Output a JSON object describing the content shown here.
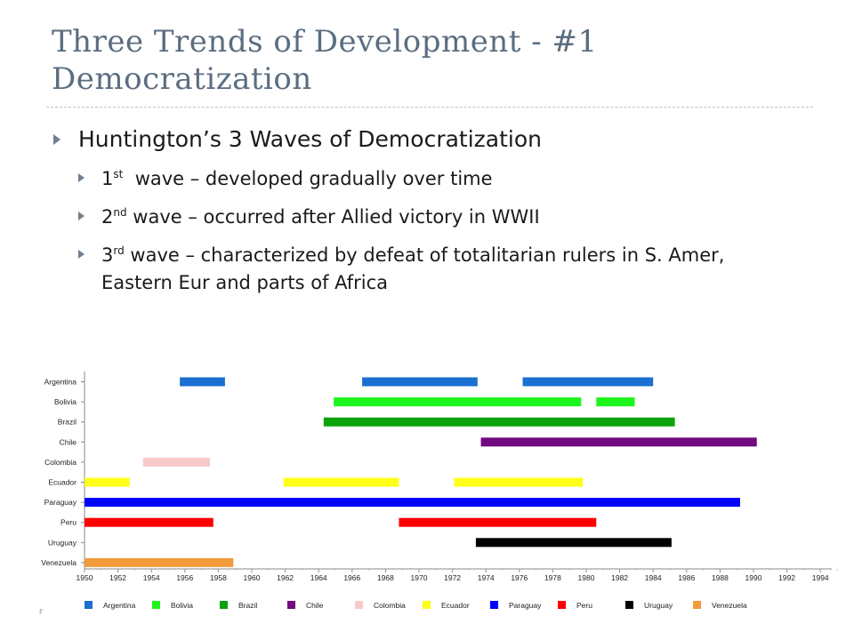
{
  "slide": {
    "title_line1": "Three Trends of Development - #1",
    "title_line2": "Democratization",
    "bullet_main": "Huntington’s 3 Waves of Democratization",
    "sub_bullets": [
      {
        "num": "1",
        "sup": "st",
        "text": "  wave – developed gradually over time"
      },
      {
        "num": "2",
        "sup": "nd",
        "text": " wave – occurred after Allied victory in WWII"
      },
      {
        "num": "3",
        "sup": "rd",
        "text": " wave – characterized by defeat of totalitarian rulers in S. Amer, Eastern Eur and parts of Africa"
      }
    ],
    "footnote": "F"
  },
  "chart_data": {
    "type": "timeline",
    "title": "",
    "xlim": [
      1950,
      1995
    ],
    "x_ticks": [
      1950,
      1952,
      1954,
      1956,
      1958,
      1960,
      1962,
      1964,
      1966,
      1968,
      1970,
      1972,
      1974,
      1976,
      1978,
      1980,
      1982,
      1984,
      1986,
      1988,
      1990,
      1992,
      1994
    ],
    "categories": [
      "Argentina",
      "Bolivia",
      "Brazil",
      "Chile",
      "Colombia",
      "Ecuador",
      "Paraguay",
      "Peru",
      "Uruguay",
      "Venezuela"
    ],
    "series": [
      {
        "name": "Argentina",
        "color": "#1a6fd1",
        "periods": [
          [
            1955.7,
            1958.4
          ],
          [
            1966.6,
            1973.5
          ],
          [
            1976.2,
            1984.0
          ]
        ]
      },
      {
        "name": "Bolivia",
        "color": "#1ef51e",
        "periods": [
          [
            1964.9,
            1979.7
          ],
          [
            1980.6,
            1982.9
          ]
        ]
      },
      {
        "name": "Brazil",
        "color": "#0ba30b",
        "periods": [
          [
            1964.3,
            1985.3
          ]
        ]
      },
      {
        "name": "Chile",
        "color": "#720a80",
        "periods": [
          [
            1973.7,
            1990.2
          ]
        ]
      },
      {
        "name": "Colombia",
        "color": "#f7c9c9",
        "periods": [
          [
            1953.5,
            1957.5
          ]
        ]
      },
      {
        "name": "Ecuador",
        "color": "#ffff1a",
        "periods": [
          [
            1950.0,
            1952.7
          ],
          [
            1961.9,
            1968.8
          ],
          [
            1972.1,
            1979.8
          ]
        ]
      },
      {
        "name": "Paraguay",
        "color": "#0000ff",
        "periods": [
          [
            1950.0,
            1989.2
          ]
        ]
      },
      {
        "name": "Peru",
        "color": "#ff0000",
        "periods": [
          [
            1950.0,
            1957.7
          ],
          [
            1968.8,
            1980.6
          ]
        ]
      },
      {
        "name": "Uruguay",
        "color": "#000000",
        "periods": [
          [
            1973.4,
            1985.1
          ]
        ]
      },
      {
        "name": "Venezuela",
        "color": "#f39a3b",
        "periods": [
          [
            1950.0,
            1958.9
          ]
        ]
      }
    ],
    "legend_position": "bottom"
  }
}
